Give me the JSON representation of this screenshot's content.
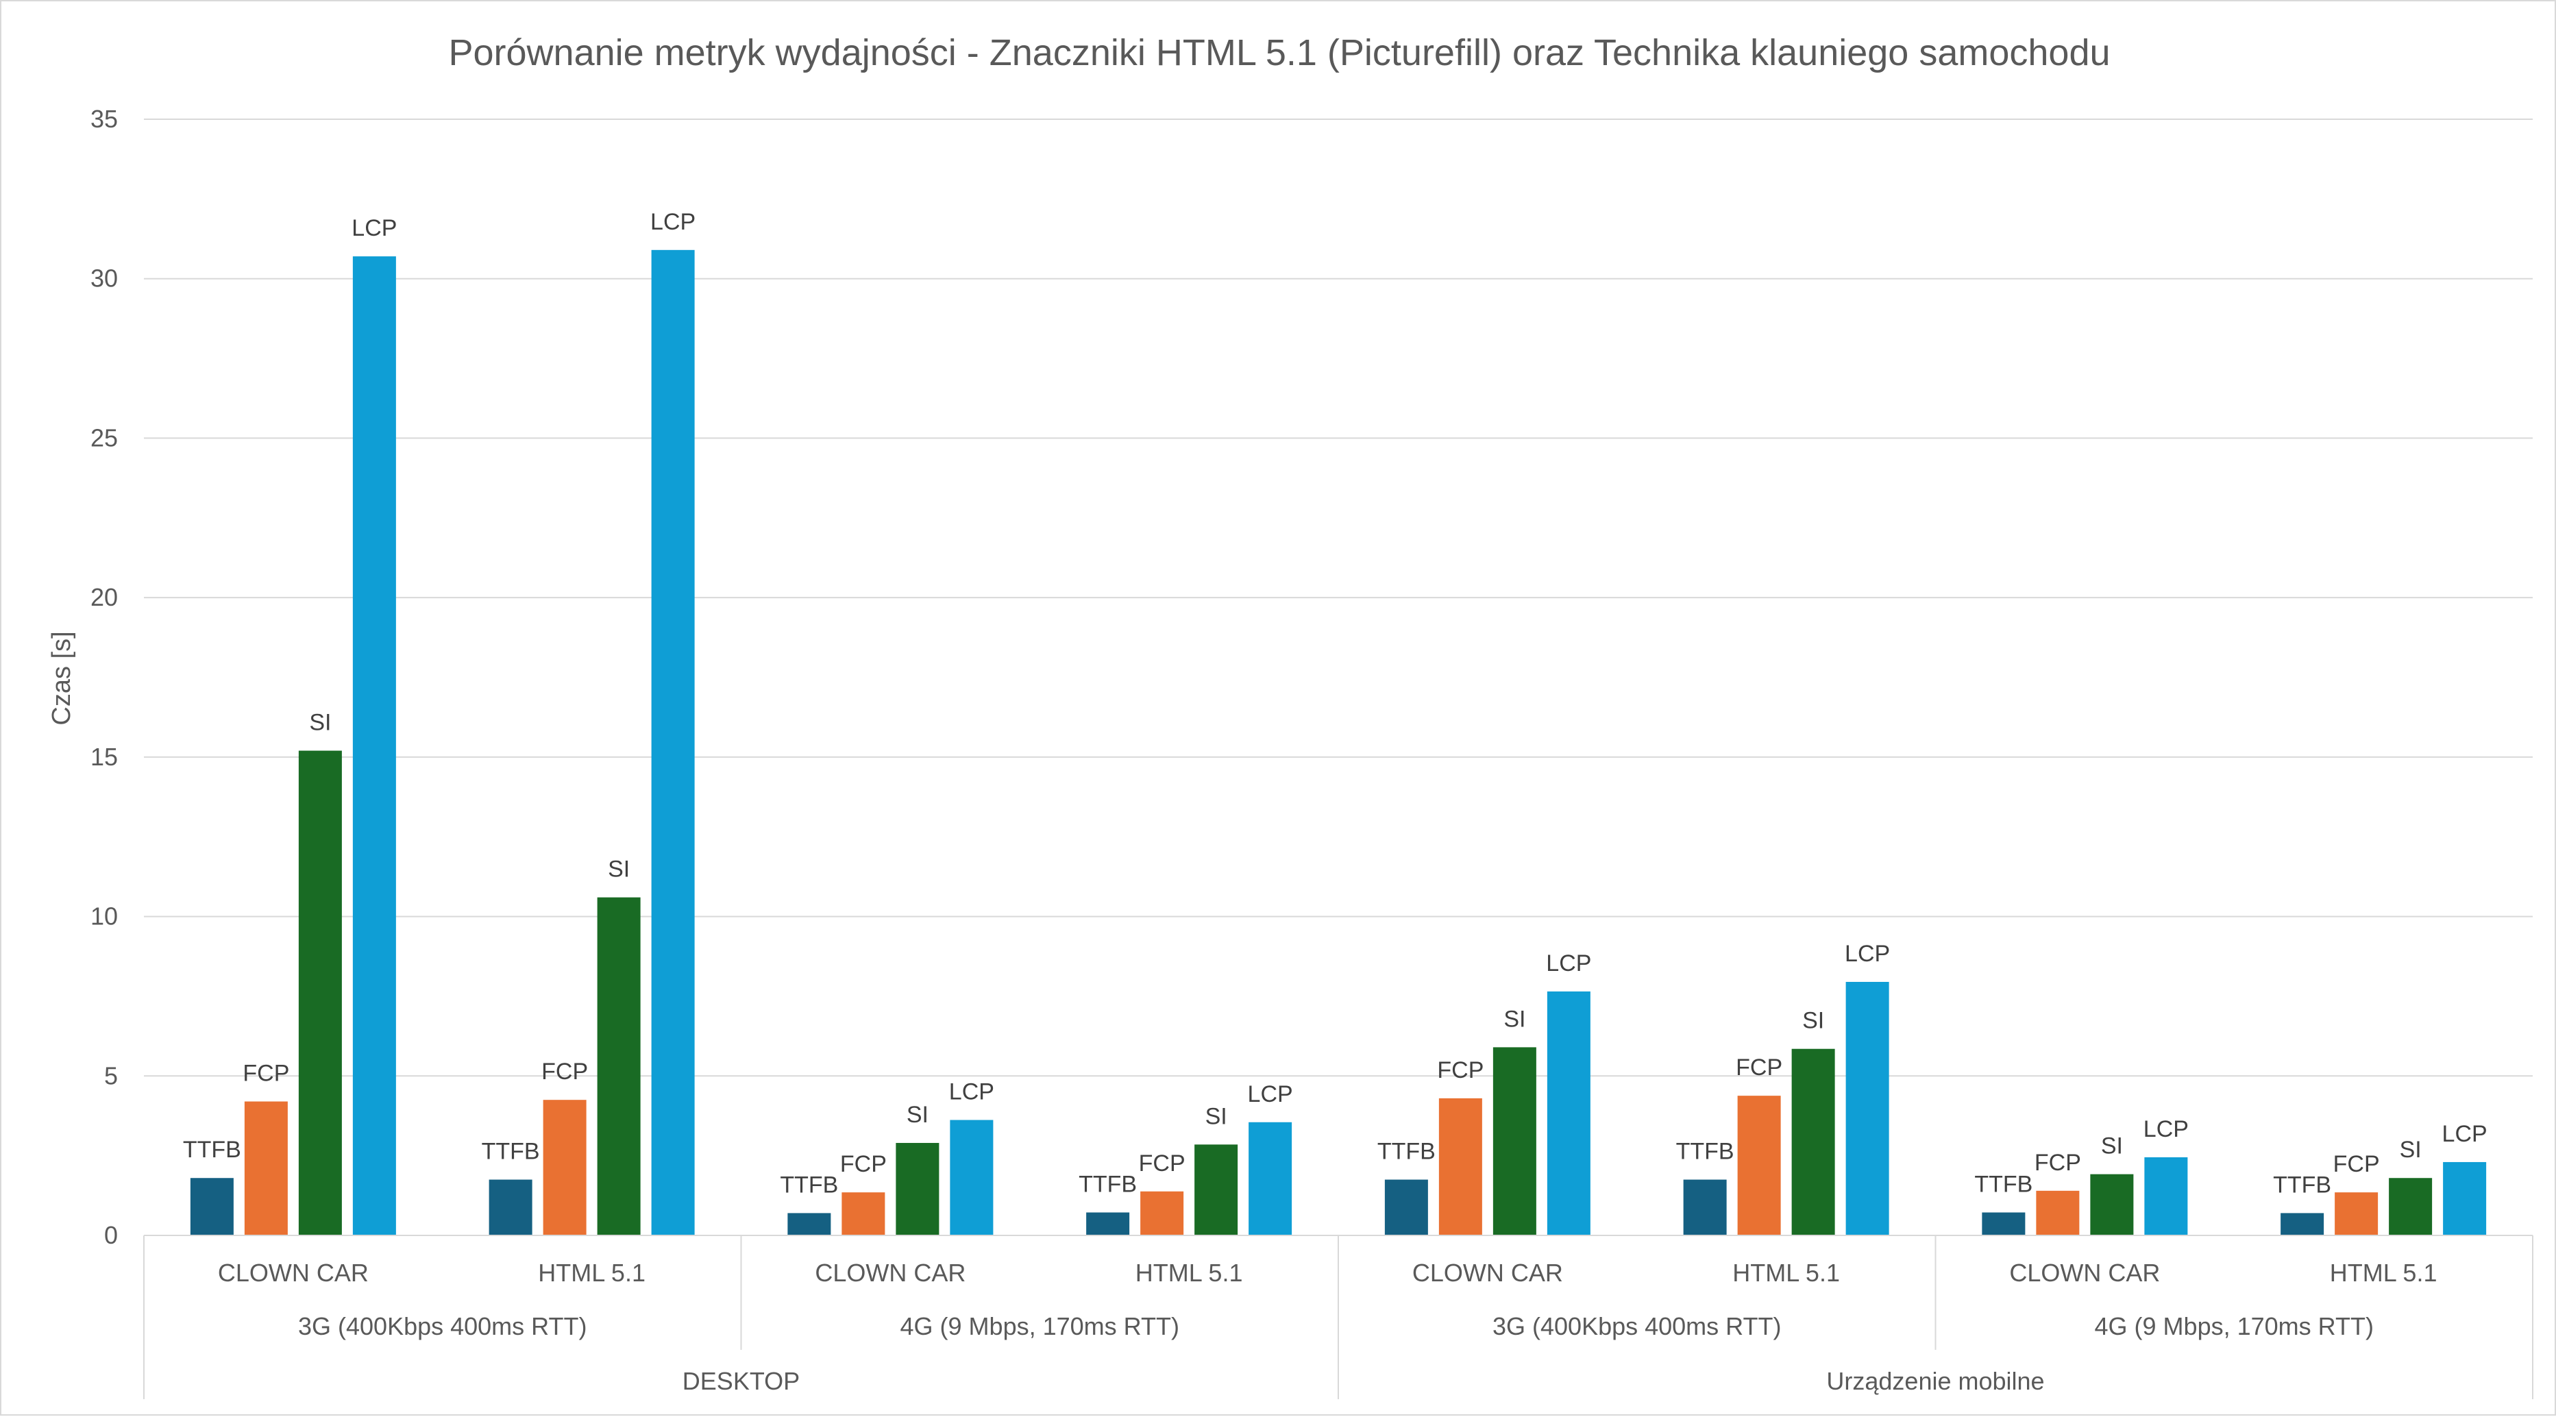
{
  "chart_data": {
    "type": "bar",
    "title": "Porównanie metryk wydajności - Znaczniki HTML 5.1 (Picturefill) oraz Technika klauniego samochodu",
    "ylabel": "Czas [s]",
    "xlabel": "",
    "ylim": [
      0,
      35
    ],
    "yticks": [
      0,
      5,
      10,
      15,
      20,
      25,
      30,
      35
    ],
    "grid": true,
    "legend": "none",
    "categories": [
      "CLOWN CAR",
      "HTML 5.1",
      "CLOWN CAR",
      "HTML 5.1",
      "CLOWN CAR",
      "HTML 5.1",
      "CLOWN CAR",
      "HTML 5.1"
    ],
    "groups_level2": [
      "3G (400Kbps 400ms RTT)",
      "4G (9 Mbps, 170ms RTT)",
      "3G (400Kbps 400ms RTT)",
      "4G (9 Mbps, 170ms RTT)"
    ],
    "groups_level1": [
      "DESKTOP",
      "Urządzenie mobilne"
    ],
    "series": [
      {
        "name": "TTFB",
        "color": "#156082",
        "values": [
          1.8,
          1.75,
          0.7,
          0.72,
          1.75,
          1.75,
          0.72,
          0.7
        ]
      },
      {
        "name": "FCP",
        "color": "#E97132",
        "values": [
          4.2,
          4.25,
          1.35,
          1.38,
          4.3,
          4.38,
          1.4,
          1.35
        ]
      },
      {
        "name": "SI",
        "color": "#196B24",
        "values": [
          15.2,
          10.6,
          2.9,
          2.85,
          5.9,
          5.85,
          1.92,
          1.8
        ]
      },
      {
        "name": "LCP",
        "color": "#0F9ED5",
        "values": [
          30.7,
          30.9,
          3.62,
          3.55,
          7.65,
          7.95,
          2.45,
          2.3
        ]
      }
    ]
  }
}
